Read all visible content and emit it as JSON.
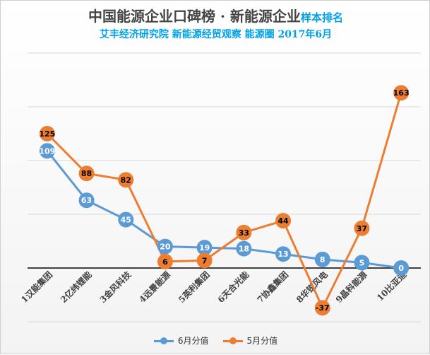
{
  "title_main": "中国能源企业口碑榜 · 新能源企业",
  "title_suffix": "样本排名",
  "subtitle": "艾丰经济研究院 新能源经贸观察 能源圈 2017年6月",
  "colors": {
    "june": "#5b9bd5",
    "may": "#ed7d31",
    "gridline": "#d9d9d9",
    "axis": "#404040"
  },
  "chart_data": {
    "type": "line",
    "categories": [
      "1汉能集团",
      "2亿纬锂能",
      "3金风科技",
      "4远景能源",
      "5英利集团",
      "6天合光能",
      "7协鑫集团",
      "8华锐风电",
      "9晶科能源",
      "10比亚迪"
    ],
    "series": [
      {
        "name": "6月分值",
        "values": [
          109,
          63,
          45,
          20,
          19,
          18,
          13,
          8,
          5,
          0
        ]
      },
      {
        "name": "5月分值",
        "values": [
          125,
          88,
          82,
          6,
          7,
          33,
          44,
          -37,
          37,
          163
        ]
      }
    ],
    "ylim": [
      -50,
      200
    ],
    "grid": true,
    "legend_position": "bottom"
  }
}
